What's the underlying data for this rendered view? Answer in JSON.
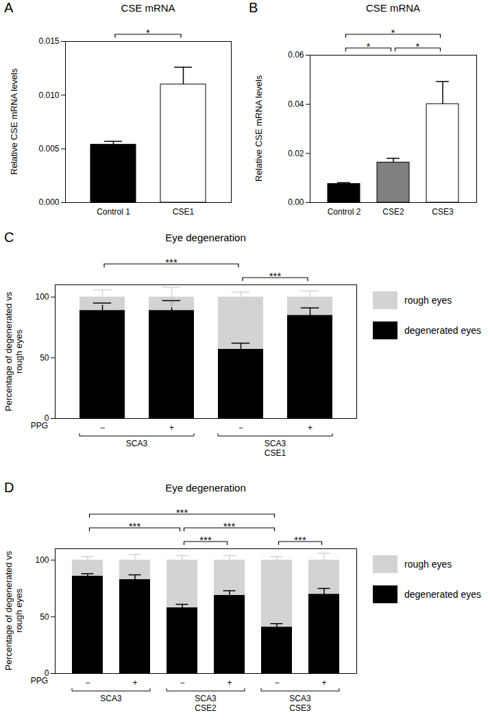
{
  "chart_data": [
    {
      "panel": "A",
      "type": "bar",
      "title": "CSE mRNA",
      "y_label": "Relative CSE mRNA levels",
      "categories": [
        "Control 1",
        "CSE1"
      ],
      "values": [
        0.0054,
        0.011
      ],
      "errors": [
        0.0003,
        0.0016
      ],
      "colors": [
        "#000000",
        "#ffffff"
      ],
      "ylim": [
        0,
        0.015
      ],
      "yticks": [
        {
          "value": 0,
          "label": "0.000"
        },
        0.005,
        {
          "value": 0.01,
          "label": "0.010"
        },
        0.015
      ],
      "annotations": [
        {
          "from": 0,
          "to": 1,
          "text": "*"
        }
      ]
    },
    {
      "panel": "B",
      "type": "bar",
      "title": "CSE mRNA",
      "y_label": "Relative CSE mRNA levels",
      "categories": [
        "Control 2",
        "CSE2",
        "CSE3"
      ],
      "values": [
        0.0076,
        0.0163,
        0.0401
      ],
      "errors": [
        0.0005,
        0.0017,
        0.0092
      ],
      "colors": [
        "#000000",
        "#808080",
        "#ffffff"
      ],
      "ylim": [
        0,
        0.06
      ],
      "yticks": [
        {
          "value": 0,
          "label": "0.00"
        },
        0.02,
        0.04,
        0.06
      ],
      "annotations": [
        {
          "from": 0,
          "to": 1,
          "text": "*"
        },
        {
          "from": 1,
          "to": 2,
          "text": "*"
        },
        {
          "from": 0,
          "to": 2,
          "text": "*"
        }
      ]
    },
    {
      "panel": "C",
      "type": "bar",
      "stacked": true,
      "title": "Eye degeneration",
      "y_label": "Percentage of degenerated vs rough eyes",
      "x_label": "PPG",
      "categories": [
        "−",
        "+",
        "−",
        "+"
      ],
      "groups": [
        "SCA3",
        "SCA3",
        "SCA3\nCSE1",
        "SCA3\nCSE1"
      ],
      "series": [
        {
          "name": "degenerated eyes",
          "color": "#000000",
          "values": [
            89,
            89,
            57,
            85
          ],
          "errors": [
            6,
            8,
            5,
            6
          ]
        },
        {
          "name": "rough eyes",
          "color": "#d3d3d3",
          "values": [
            11,
            11,
            43,
            15
          ],
          "errors": [
            6,
            8,
            4,
            5
          ]
        }
      ],
      "ylim": [
        0,
        110
      ],
      "yticks": [
        0,
        50,
        100
      ],
      "legend": "right",
      "annotations": [
        {
          "from": 0,
          "to": 2,
          "text": "***"
        },
        {
          "from": 2,
          "to": 3,
          "text": "***"
        }
      ]
    },
    {
      "panel": "D",
      "type": "bar",
      "stacked": true,
      "title": "Eye degeneration",
      "y_label": "Percentage of degenerated vs rough eyes",
      "x_label": "PPG",
      "categories": [
        "−",
        "+",
        "−",
        "+",
        "−",
        "+"
      ],
      "groups": [
        "SCA3",
        "SCA3",
        "SCA3\nCSE2",
        "SCA3\nCSE2",
        "SCA3\nCSE3",
        "SCA3\nCSE3"
      ],
      "series": [
        {
          "name": "degenerated eyes",
          "color": "#000000",
          "values": [
            86,
            83,
            58,
            69,
            41,
            70
          ],
          "errors": [
            2,
            4,
            3,
            4,
            3,
            5
          ]
        },
        {
          "name": "rough eyes",
          "color": "#d3d3d3",
          "values": [
            14,
            17,
            42,
            31,
            59,
            30
          ],
          "errors": [
            3,
            5,
            4,
            4,
            3,
            6
          ]
        }
      ],
      "ylim": [
        0,
        110
      ],
      "yticks": [
        0,
        50,
        100
      ],
      "legend": "right",
      "annotations": [
        {
          "from": 0,
          "to": 2,
          "text": "***"
        },
        {
          "from": 0,
          "to": 4,
          "text": "***"
        },
        {
          "from": 2,
          "to": 4,
          "text": "***"
        },
        {
          "from": 2,
          "to": 3,
          "text": "***"
        },
        {
          "from": 4,
          "to": 5,
          "text": "***"
        }
      ]
    }
  ]
}
